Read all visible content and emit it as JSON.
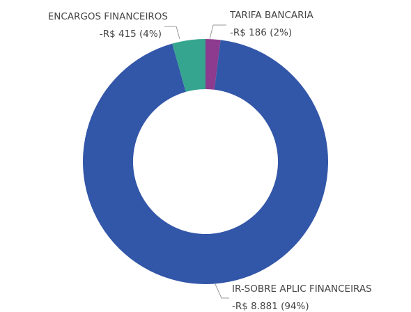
{
  "chart_data": {
    "type": "donut",
    "categories": [
      "TARIFA BANCARIA",
      "IR-SOBRE APLIC FINANCEIRAS",
      "ENCARGOS FINANCEIROS"
    ],
    "values": [
      -186,
      -8881,
      -415
    ],
    "value_labels": [
      "-R$ 186 (2%)",
      "-R$ 8.881 (94%)",
      "-R$ 415 (4%)"
    ],
    "colors": [
      "#8c3b8e",
      "#3256a8",
      "#36a58f"
    ]
  }
}
